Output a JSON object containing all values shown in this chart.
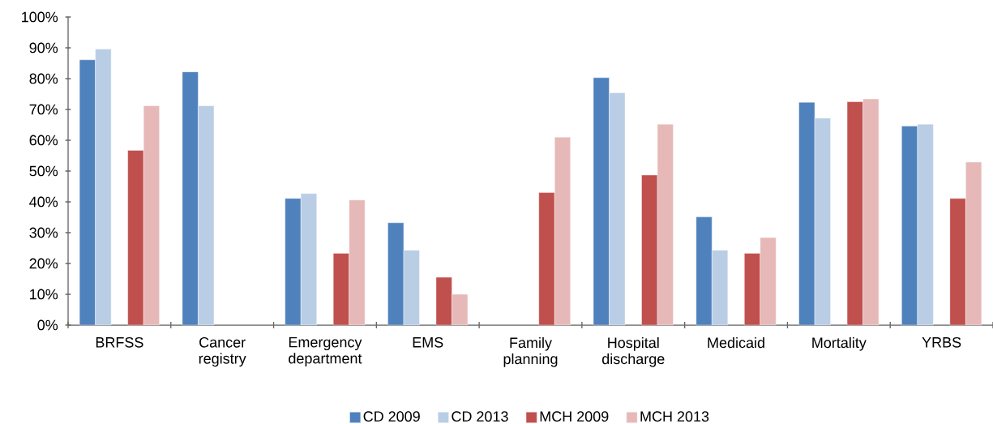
{
  "chart_data": {
    "type": "bar",
    "categories": [
      "BRFSS",
      "Cancer registry",
      "Emergency department",
      "EMS",
      "Family planning",
      "Hospital discharge",
      "Medicaid",
      "Mortality",
      "YRBS"
    ],
    "series": [
      {
        "name": "CD 2009",
        "color": "#4f81bd",
        "values": [
          86.1,
          82.2,
          41.1,
          33.2,
          null,
          80.3,
          35.1,
          72.3,
          64.6
        ]
      },
      {
        "name": "CD 2013",
        "color": "#b9cde5",
        "values": [
          89.6,
          71.2,
          42.7,
          24.3,
          null,
          75.4,
          24.3,
          67.2,
          65.2
        ]
      },
      {
        "name": "MCH 2009",
        "color": "#c0504d",
        "values": [
          56.7,
          null,
          23.3,
          15.5,
          43.0,
          48.7,
          23.3,
          72.5,
          41.1
        ]
      },
      {
        "name": "MCH 2013",
        "color": "#e6b9b8",
        "values": [
          71.2,
          null,
          40.6,
          10.0,
          61.0,
          65.2,
          28.4,
          73.4,
          52.9
        ]
      }
    ],
    "ylim": [
      0,
      100
    ],
    "yticks": [
      {
        "value": 0,
        "label": "0%"
      },
      {
        "value": 10,
        "label": "10%"
      },
      {
        "value": 20,
        "label": "20%"
      },
      {
        "value": 30,
        "label": "30%"
      },
      {
        "value": 40,
        "label": "40%"
      },
      {
        "value": 50,
        "label": "50%"
      },
      {
        "value": 60,
        "label": "60%"
      },
      {
        "value": 70,
        "label": "70%"
      },
      {
        "value": 80,
        "label": "80%"
      },
      {
        "value": 90,
        "label": "90%"
      },
      {
        "value": 100,
        "label": "100%"
      }
    ],
    "legend": "bottom"
  }
}
